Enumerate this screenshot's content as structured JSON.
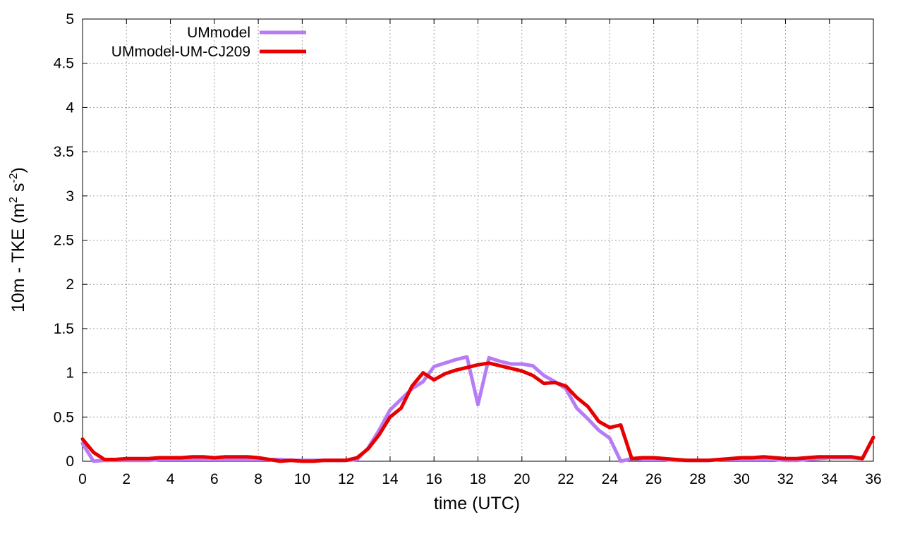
{
  "chart_data": {
    "type": "line",
    "title": "",
    "xlabel": "time (UTC)",
    "ylabel_main": "10m - TKE (m",
    "ylabel_sup1": "2",
    "ylabel_mid": " s",
    "ylabel_sup2": "-2",
    "ylabel_end": ")",
    "xlim": [
      0,
      36
    ],
    "ylim": [
      0,
      5
    ],
    "xticks": [
      0,
      2,
      4,
      6,
      8,
      10,
      12,
      14,
      16,
      18,
      20,
      22,
      24,
      26,
      28,
      30,
      32,
      34,
      36
    ],
    "yticks": [
      0,
      0.5,
      1,
      1.5,
      2,
      2.5,
      3,
      3.5,
      4,
      4.5,
      5
    ],
    "grid": true,
    "legend_position": "top-left",
    "series": [
      {
        "name": "UMmodel",
        "color": "#b77cf5",
        "x": [
          0,
          0.5,
          1,
          1.5,
          2,
          2.5,
          3,
          3.5,
          4,
          4.5,
          5,
          5.5,
          6,
          6.5,
          7,
          7.5,
          8,
          8.5,
          9,
          9.5,
          10,
          10.5,
          11,
          11.5,
          12,
          12.5,
          13,
          13.5,
          14,
          14.5,
          15,
          15.5,
          16,
          16.5,
          17,
          17.5,
          18,
          18.5,
          19,
          19.5,
          20,
          20.5,
          21,
          21.5,
          22,
          22.5,
          23,
          23.5,
          24,
          24.5,
          25,
          25.5,
          26,
          26.5,
          27,
          27.5,
          28,
          28.5,
          29,
          29.5,
          30,
          30.5,
          31,
          31.5,
          32,
          32.5,
          33,
          33.5,
          34,
          34.5,
          35,
          35.5,
          36
        ],
        "y": [
          0.2,
          0.0,
          0.01,
          0.01,
          0.01,
          0.01,
          0.01,
          0.02,
          0.02,
          0.02,
          0.02,
          0.02,
          0.02,
          0.02,
          0.02,
          0.02,
          0.02,
          0.02,
          0.02,
          0.01,
          0.01,
          0.01,
          0.01,
          0.01,
          0.01,
          0.02,
          0.15,
          0.35,
          0.58,
          0.7,
          0.82,
          0.9,
          1.07,
          1.11,
          1.15,
          1.18,
          0.64,
          1.17,
          1.13,
          1.1,
          1.1,
          1.08,
          0.97,
          0.9,
          0.82,
          0.6,
          0.48,
          0.35,
          0.26,
          0.0,
          0.03,
          0.02,
          0.02,
          0.02,
          0.01,
          0.01,
          0.01,
          0.01,
          0.02,
          0.02,
          0.02,
          0.02,
          0.02,
          0.02,
          0.01,
          0.01,
          0.02,
          0.03,
          0.04,
          0.04,
          0.04,
          0.03,
          0.27
        ]
      },
      {
        "name": "UMmodel-UM-CJ209",
        "color": "#e60000",
        "x": [
          0,
          0.5,
          1,
          1.5,
          2,
          2.5,
          3,
          3.5,
          4,
          4.5,
          5,
          5.5,
          6,
          6.5,
          7,
          7.5,
          8,
          8.5,
          9,
          9.5,
          10,
          10.5,
          11,
          11.5,
          12,
          12.5,
          13,
          13.5,
          14,
          14.5,
          15,
          15.5,
          16,
          16.5,
          17,
          17.5,
          18,
          18.5,
          19,
          19.5,
          20,
          20.5,
          21,
          21.5,
          22,
          22.5,
          23,
          23.5,
          24,
          24.5,
          25,
          25.5,
          26,
          26.5,
          27,
          27.5,
          28,
          28.5,
          29,
          29.5,
          30,
          30.5,
          31,
          31.5,
          32,
          32.5,
          33,
          33.5,
          34,
          34.5,
          35,
          35.5,
          36
        ],
        "y": [
          0.25,
          0.1,
          0.02,
          0.02,
          0.03,
          0.03,
          0.03,
          0.04,
          0.04,
          0.04,
          0.05,
          0.05,
          0.04,
          0.05,
          0.05,
          0.05,
          0.04,
          0.02,
          0.0,
          0.01,
          0.0,
          0.0,
          0.01,
          0.01,
          0.01,
          0.04,
          0.14,
          0.3,
          0.5,
          0.6,
          0.85,
          1.0,
          0.92,
          0.99,
          1.03,
          1.06,
          1.09,
          1.11,
          1.08,
          1.05,
          1.02,
          0.97,
          0.88,
          0.89,
          0.85,
          0.72,
          0.62,
          0.45,
          0.38,
          0.41,
          0.03,
          0.04,
          0.04,
          0.03,
          0.02,
          0.01,
          0.01,
          0.01,
          0.02,
          0.03,
          0.04,
          0.04,
          0.05,
          0.04,
          0.03,
          0.03,
          0.04,
          0.05,
          0.05,
          0.05,
          0.05,
          0.03,
          0.27
        ]
      }
    ]
  }
}
